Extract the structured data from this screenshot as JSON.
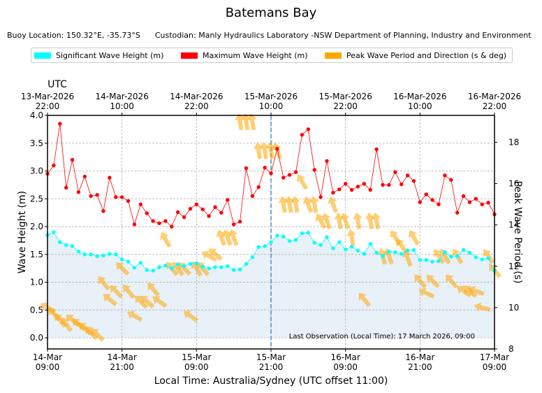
{
  "title": "Batemans Bay",
  "subtitle": {
    "buoy_location": "Buoy Location: 150.32°E, -35.73°S",
    "custodian": "Custodian: Manly Hydraulics Laboratory -NSW Department of Planning, Industry and Environment"
  },
  "legend": {
    "hs": "Significant Wave Height (m)",
    "hmax": "Maximum Wave Height (m)",
    "tp": "Peak Wave Period and Direction (s & deg)"
  },
  "colors": {
    "hs": "#00ffff",
    "hmax": "#ff0000",
    "tp": "#ffa500",
    "fill": "#e8f0f8",
    "marker": "#2b7fb8"
  },
  "chart_data": {
    "type": "line",
    "title": "Batemans Bay",
    "xlabel": "Local Time: Australia/Sydney (UTC offset 11:00)",
    "ylabel": "Wave Height (m)",
    "y2label": "Peak Wave Period (s)",
    "xlim_hours": [
      0,
      72
    ],
    "ylim": [
      -0.2,
      4.0
    ],
    "y2lim": [
      8,
      19.3
    ],
    "yticks": [
      "0.0",
      "0.5",
      "1.0",
      "1.5",
      "2.0",
      "2.5",
      "3.0",
      "3.5",
      "4.0"
    ],
    "y2ticks": [
      "8",
      "10",
      "12",
      "14",
      "16",
      "18"
    ],
    "local_ticks": [
      {
        "date": "14-Mar",
        "time": "09:00"
      },
      {
        "date": "14-Mar",
        "time": "21:00"
      },
      {
        "date": "15-Mar",
        "time": "09:00"
      },
      {
        "date": "15-Mar",
        "time": "21:00"
      },
      {
        "date": "16-Mar",
        "time": "09:00"
      },
      {
        "date": "16-Mar",
        "time": "21:00"
      },
      {
        "date": "17-Mar",
        "time": "09:00"
      }
    ],
    "utc_label": "UTC",
    "utc_ticks": [
      {
        "date": "13-Mar-2026",
        "time": "22:00"
      },
      {
        "date": "14-Mar-2026",
        "time": "10:00"
      },
      {
        "date": "14-Mar-2026",
        "time": "22:00"
      },
      {
        "date": "15-Mar-2026",
        "time": "10:00"
      },
      {
        "date": "15-Mar-2026",
        "time": "22:00"
      },
      {
        "date": "16-Mar-2026",
        "time": "10:00"
      },
      {
        "date": "16-Mar-2026",
        "time": "22:00"
      }
    ],
    "marker_hour": 36,
    "annotation": "Last Observation (Local Time): 17 March 2026, 09:00",
    "series": [
      {
        "name": "Maximum Wave Height (m)",
        "hours": [
          0,
          1,
          2,
          3,
          4,
          5,
          6,
          7,
          8,
          9,
          10,
          11,
          12,
          13,
          14,
          15,
          16,
          17,
          18,
          19,
          20,
          21,
          22,
          23,
          24,
          25,
          26,
          27,
          28,
          29,
          30,
          31,
          32,
          33,
          34,
          35,
          36,
          37,
          38,
          39,
          40,
          41,
          42,
          43,
          44,
          45,
          46,
          47,
          48,
          49,
          50,
          51,
          52,
          53,
          54,
          55,
          56,
          57,
          58,
          59,
          60,
          61,
          62,
          63,
          64,
          65,
          66,
          67,
          68,
          69,
          70,
          71,
          72
        ],
        "values": [
          2.95,
          3.1,
          3.85,
          2.7,
          3.2,
          2.62,
          2.9,
          2.55,
          2.57,
          2.28,
          2.88,
          2.53,
          2.53,
          2.46,
          2.04,
          2.4,
          2.24,
          2.1,
          2.06,
          2.1,
          2.0,
          2.26,
          2.17,
          2.32,
          2.4,
          2.31,
          2.19,
          2.35,
          2.25,
          2.48,
          2.04,
          2.09,
          3.05,
          2.55,
          2.71,
          3.06,
          2.96,
          3.4,
          2.88,
          2.93,
          2.98,
          3.65,
          3.75,
          3.02,
          2.53,
          3.18,
          2.61,
          2.67,
          2.77,
          2.66,
          2.72,
          2.77,
          2.66,
          3.39,
          2.75,
          2.75,
          2.98,
          2.76,
          2.92,
          2.82,
          2.44,
          2.58,
          2.48,
          2.4,
          2.92,
          2.84,
          2.25,
          2.55,
          2.44,
          2.5,
          2.4,
          2.43,
          2.22
        ]
      },
      {
        "name": "Significant Wave Height (m)",
        "hours": [
          0,
          1,
          2,
          3,
          4,
          5,
          6,
          7,
          8,
          9,
          10,
          11,
          12,
          13,
          14,
          15,
          16,
          17,
          18,
          19,
          20,
          21,
          22,
          23,
          24,
          25,
          26,
          27,
          28,
          29,
          30,
          31,
          32,
          33,
          34,
          35,
          36,
          37,
          38,
          39,
          40,
          41,
          42,
          43,
          44,
          45,
          46,
          47,
          48,
          49,
          50,
          51,
          52,
          53,
          54,
          55,
          56,
          57,
          58,
          59,
          60,
          61,
          62,
          63,
          64,
          65,
          66,
          67,
          68,
          69,
          70,
          71,
          72
        ],
        "values": [
          1.85,
          1.9,
          1.72,
          1.67,
          1.65,
          1.55,
          1.5,
          1.5,
          1.47,
          1.48,
          1.51,
          1.5,
          1.41,
          1.37,
          1.26,
          1.35,
          1.22,
          1.21,
          1.27,
          1.3,
          1.25,
          1.32,
          1.29,
          1.33,
          1.34,
          1.28,
          1.25,
          1.27,
          1.27,
          1.29,
          1.22,
          1.23,
          1.33,
          1.45,
          1.63,
          1.65,
          1.72,
          1.84,
          1.82,
          1.74,
          1.76,
          1.88,
          1.89,
          1.71,
          1.67,
          1.81,
          1.61,
          1.72,
          1.59,
          1.64,
          1.57,
          1.51,
          1.69,
          1.53,
          1.47,
          1.55,
          1.54,
          1.51,
          1.57,
          1.58,
          1.4,
          1.4,
          1.37,
          1.38,
          1.54,
          1.46,
          1.47,
          1.58,
          1.53,
          1.45,
          1.41,
          1.43,
          1.21
        ]
      },
      {
        "name": "Peak Wave Period and Direction (s & deg)",
        "points": [
          [
            0,
            10,
            120
          ],
          [
            1,
            9.7,
            135
          ],
          [
            2,
            9.4,
            140
          ],
          [
            3,
            9.2,
            145
          ],
          [
            4,
            9.4,
            130
          ],
          [
            5,
            9.2,
            130
          ],
          [
            6,
            9.0,
            135
          ],
          [
            7,
            8.8,
            140
          ],
          [
            8,
            8.7,
            135
          ],
          [
            9,
            11.2,
            140
          ],
          [
            10,
            10.4,
            130
          ],
          [
            11,
            10.8,
            135
          ],
          [
            12,
            11.9,
            135
          ],
          [
            13,
            10.8,
            140
          ],
          [
            14,
            9.6,
            120
          ],
          [
            15,
            10.3,
            135
          ],
          [
            16,
            10.3,
            130
          ],
          [
            17,
            10.9,
            140
          ],
          [
            18,
            10.3,
            125
          ],
          [
            19,
            13.3,
            150
          ],
          [
            20,
            11.9,
            140
          ],
          [
            21,
            11.9,
            145
          ],
          [
            22,
            11.9,
            135
          ],
          [
            23,
            9.6,
            125
          ],
          [
            24,
            11.9,
            150
          ],
          [
            25,
            11.9,
            140
          ],
          [
            26,
            12.5,
            120
          ],
          [
            27,
            12.6,
            130
          ],
          [
            28,
            13.4,
            160
          ],
          [
            29,
            13.4,
            160
          ],
          [
            30,
            13.4,
            160
          ],
          [
            31,
            19.0,
            170
          ],
          [
            32,
            19.0,
            170
          ],
          [
            33,
            19.0,
            170
          ],
          [
            34,
            17.6,
            170
          ],
          [
            35,
            17.6,
            170
          ],
          [
            36,
            17.6,
            170
          ],
          [
            37,
            17.6,
            160
          ],
          [
            38,
            15.0,
            170
          ],
          [
            39,
            15.0,
            170
          ],
          [
            40,
            15.0,
            170
          ],
          [
            41,
            16.1,
            150
          ],
          [
            42,
            15.0,
            160
          ],
          [
            43,
            15.0,
            170
          ],
          [
            44,
            14.2,
            150
          ],
          [
            45,
            14.2,
            160
          ],
          [
            46,
            15.0,
            160
          ],
          [
            47,
            14.2,
            170
          ],
          [
            48,
            14.2,
            160
          ],
          [
            49,
            13.4,
            170
          ],
          [
            50,
            14.2,
            170
          ],
          [
            51,
            10.4,
            140
          ],
          [
            52,
            14.2,
            170
          ],
          [
            53,
            14.2,
            170
          ],
          [
            54,
            12.5,
            165
          ],
          [
            55,
            12.5,
            160
          ],
          [
            56,
            13.4,
            150
          ],
          [
            57,
            13.0,
            145
          ],
          [
            58,
            12.4,
            160
          ],
          [
            59,
            13.4,
            150
          ],
          [
            60,
            11.3,
            140
          ],
          [
            61,
            10.7,
            115
          ],
          [
            62,
            11.3,
            135
          ],
          [
            63,
            12.5,
            145
          ],
          [
            64,
            12.5,
            150
          ],
          [
            65,
            11.3,
            140
          ],
          [
            66,
            12.5,
            150
          ],
          [
            67,
            10.8,
            125
          ],
          [
            68,
            10.8,
            130
          ],
          [
            69,
            10.8,
            110
          ],
          [
            70,
            10.0,
            105
          ],
          [
            71,
            12.5,
            145
          ],
          [
            72,
            11.8,
            140
          ]
        ]
      }
    ]
  }
}
